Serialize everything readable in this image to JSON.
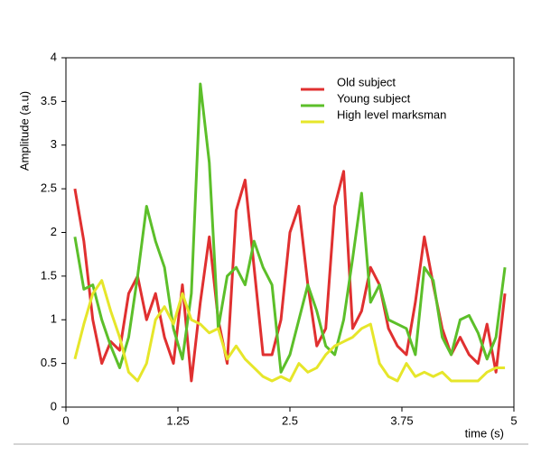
{
  "chart_data": {
    "type": "line",
    "xlabel": "time (s)",
    "ylabel": "Amplitude (a.u)",
    "x": [
      0.1,
      0.2,
      0.3,
      0.4,
      0.5,
      0.6,
      0.7,
      0.8,
      0.9,
      1.0,
      1.1,
      1.2,
      1.3,
      1.4,
      1.5,
      1.6,
      1.7,
      1.8,
      1.9,
      2.0,
      2.1,
      2.2,
      2.3,
      2.4,
      2.5,
      2.6,
      2.7,
      2.8,
      2.9,
      3.0,
      3.1,
      3.2,
      3.3,
      3.4,
      3.5,
      3.6,
      3.7,
      3.8,
      3.9,
      4.0,
      4.1,
      4.2,
      4.3,
      4.4,
      4.5,
      4.6,
      4.7,
      4.8,
      4.9
    ],
    "series": [
      {
        "name": "Old subject",
        "color": "#e03030",
        "values": [
          2.5,
          1.9,
          1.0,
          0.5,
          0.75,
          0.65,
          1.3,
          1.5,
          1.0,
          1.3,
          0.8,
          0.5,
          1.4,
          0.3,
          1.2,
          1.95,
          1.0,
          0.5,
          2.25,
          2.6,
          1.6,
          0.6,
          0.6,
          1.0,
          2.0,
          2.3,
          1.4,
          0.7,
          0.9,
          2.3,
          2.7,
          0.9,
          1.1,
          1.6,
          1.4,
          0.9,
          0.7,
          0.6,
          1.2,
          1.95,
          1.4,
          0.9,
          0.6,
          0.8,
          0.6,
          0.5,
          0.95,
          0.4,
          1.3
        ]
      },
      {
        "name": "Young subject",
        "color": "#5cbf2a",
        "values": [
          1.95,
          1.35,
          1.4,
          1.0,
          0.7,
          0.45,
          0.8,
          1.5,
          2.3,
          1.9,
          1.6,
          0.9,
          0.55,
          1.3,
          3.7,
          2.8,
          0.9,
          1.5,
          1.6,
          1.4,
          1.9,
          1.6,
          1.4,
          0.4,
          0.6,
          1.0,
          1.4,
          1.1,
          0.7,
          0.6,
          1.0,
          1.7,
          2.45,
          1.2,
          1.4,
          1.0,
          0.95,
          0.9,
          0.6,
          1.6,
          1.45,
          0.8,
          0.6,
          1.0,
          1.05,
          0.85,
          0.55,
          0.8,
          1.6
        ]
      },
      {
        "name": "High level marksman",
        "color": "#e6e62a",
        "values": [
          0.55,
          0.95,
          1.3,
          1.45,
          1.1,
          0.8,
          0.4,
          0.3,
          0.5,
          1.0,
          1.15,
          0.95,
          1.3,
          1.0,
          0.95,
          0.85,
          0.9,
          0.55,
          0.7,
          0.55,
          0.45,
          0.35,
          0.3,
          0.35,
          0.3,
          0.5,
          0.4,
          0.45,
          0.6,
          0.7,
          0.75,
          0.8,
          0.9,
          0.95,
          0.5,
          0.35,
          0.3,
          0.5,
          0.35,
          0.4,
          0.35,
          0.4,
          0.3,
          0.3,
          0.3,
          0.3,
          0.4,
          0.45,
          0.45
        ]
      }
    ],
    "xlim": [
      0,
      5
    ],
    "xticks": [
      0,
      1.25,
      2.5,
      3.75,
      5
    ],
    "ylim": [
      0,
      4
    ],
    "yticks": [
      0,
      0.5,
      1,
      1.5,
      2,
      2.5,
      3,
      3.5,
      4
    ],
    "legend": "upper right"
  }
}
